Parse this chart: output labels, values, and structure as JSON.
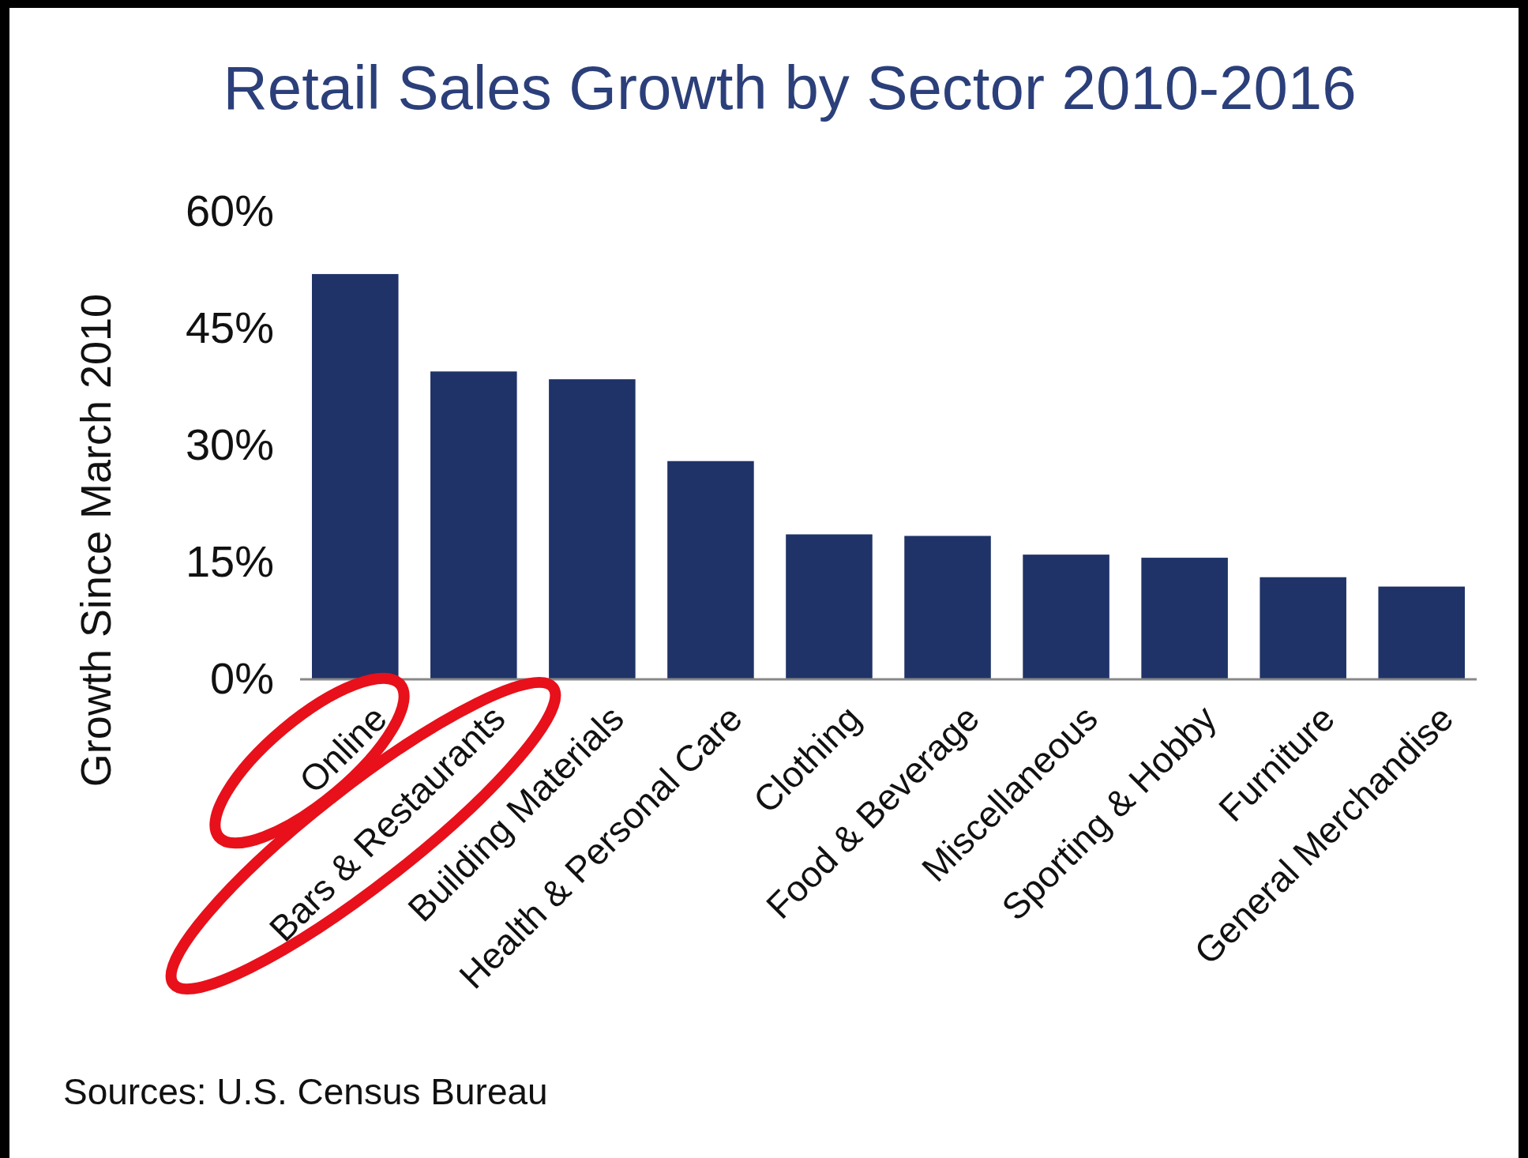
{
  "chart_data": {
    "type": "bar",
    "title": "Retail Sales Growth by Sector 2010-2016",
    "ylabel": "Growth Since March 2010",
    "categories": [
      "Online",
      "Bars & Restaurants",
      "Building Materials",
      "Health & Personal Care",
      "Clothing",
      "Food & Beverage",
      "Miscellaneous",
      "Sporting & Hobby",
      "Furniture",
      "General Merchandise"
    ],
    "values": [
      52,
      39.5,
      38.5,
      28,
      18.6,
      18.4,
      16,
      15.6,
      13.1,
      11.9
    ],
    "color": "#1f3368",
    "ylim": [
      0,
      60
    ],
    "yticks": [
      {
        "value": 0,
        "label": "0%"
      },
      {
        "value": 15,
        "label": "15%"
      },
      {
        "value": 30,
        "label": "30%"
      },
      {
        "value": 45,
        "label": "45%"
      },
      {
        "value": 60,
        "label": "60%"
      }
    ],
    "annotations": [
      "Sources: U.S. Census Bureau"
    ]
  }
}
